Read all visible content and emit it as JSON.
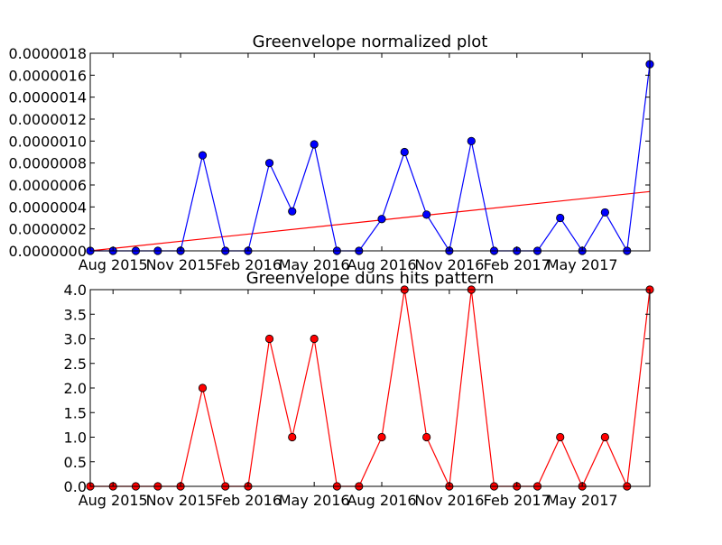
{
  "chart_data": [
    {
      "type": "line",
      "title": "Greenvelope normalized plot",
      "xlabel": "",
      "ylabel": "",
      "x": [
        "2015-07-01",
        "2015-08-01",
        "2015-09-01",
        "2015-10-01",
        "2015-11-01",
        "2015-12-01",
        "2016-01-01",
        "2016-02-01",
        "2016-03-01",
        "2016-04-01",
        "2016-05-01",
        "2016-06-01",
        "2016-07-01",
        "2016-08-01",
        "2016-09-01",
        "2016-10-01",
        "2016-11-01",
        "2016-12-01",
        "2017-01-01",
        "2017-02-01",
        "2017-03-01",
        "2017-04-01",
        "2017-05-01",
        "2017-06-01",
        "2017-07-01",
        "2017-08-01"
      ],
      "xlim": [
        "2015-07-01",
        "2017-08-01"
      ],
      "x_ticks": [
        {
          "date": "2015-08-01",
          "label": "Aug 2015"
        },
        {
          "date": "2015-11-01",
          "label": "Nov 2015"
        },
        {
          "date": "2016-02-01",
          "label": "Feb 2016"
        },
        {
          "date": "2016-05-01",
          "label": "May 2016"
        },
        {
          "date": "2016-08-01",
          "label": "Aug 2016"
        },
        {
          "date": "2016-11-01",
          "label": "Nov 2016"
        },
        {
          "date": "2017-02-01",
          "label": "Feb 2017"
        },
        {
          "date": "2017-05-01",
          "label": "May 2017"
        }
      ],
      "ylim": [
        0,
        1.8e-06
      ],
      "y_ticks": [
        {
          "value": 0,
          "label": "0.0000000"
        },
        {
          "value": 2e-07,
          "label": "0.0000002"
        },
        {
          "value": 4e-07,
          "label": "0.0000004"
        },
        {
          "value": 6e-07,
          "label": "0.0000006"
        },
        {
          "value": 8e-07,
          "label": "0.0000008"
        },
        {
          "value": 1e-06,
          "label": "0.0000010"
        },
        {
          "value": 1.2e-06,
          "label": "0.0000012"
        },
        {
          "value": 1.4e-06,
          "label": "0.0000014"
        },
        {
          "value": 1.6e-06,
          "label": "0.0000016"
        },
        {
          "value": 1.8e-06,
          "label": "0.0000018"
        }
      ],
      "grid": false,
      "series": [
        {
          "color": "#0000ff",
          "marker": "circle",
          "values": [
            0,
            0,
            0,
            0,
            0,
            8.7e-07,
            0,
            0,
            8e-07,
            3.6e-07,
            9.7e-07,
            0,
            0,
            2.9e-07,
            9e-07,
            3.3e-07,
            0,
            1e-06,
            0,
            0,
            0,
            3e-07,
            0,
            3.5e-07,
            0,
            1.7e-06
          ]
        }
      ],
      "trendline": {
        "color": "#ff0000",
        "start": [
          "2015-07-01",
          0
        ],
        "end": [
          "2017-08-01",
          5.4e-07
        ]
      }
    },
    {
      "type": "line",
      "title": "Greenvelope duns hits pattern",
      "xlabel": "",
      "ylabel": "",
      "x": [
        "2015-07-01",
        "2015-08-01",
        "2015-09-01",
        "2015-10-01",
        "2015-11-01",
        "2015-12-01",
        "2016-01-01",
        "2016-02-01",
        "2016-03-01",
        "2016-04-01",
        "2016-05-01",
        "2016-06-01",
        "2016-07-01",
        "2016-08-01",
        "2016-09-01",
        "2016-10-01",
        "2016-11-01",
        "2016-12-01",
        "2017-01-01",
        "2017-02-01",
        "2017-03-01",
        "2017-04-01",
        "2017-05-01",
        "2017-06-01",
        "2017-07-01",
        "2017-08-01"
      ],
      "xlim": [
        "2015-07-01",
        "2017-08-01"
      ],
      "x_ticks": [
        {
          "date": "2015-08-01",
          "label": "Aug 2015"
        },
        {
          "date": "2015-11-01",
          "label": "Nov 2015"
        },
        {
          "date": "2016-02-01",
          "label": "Feb 2016"
        },
        {
          "date": "2016-05-01",
          "label": "May 2016"
        },
        {
          "date": "2016-08-01",
          "label": "Aug 2016"
        },
        {
          "date": "2016-11-01",
          "label": "Nov 2016"
        },
        {
          "date": "2017-02-01",
          "label": "Feb 2017"
        },
        {
          "date": "2017-05-01",
          "label": "May 2017"
        }
      ],
      "ylim": [
        0,
        4
      ],
      "y_ticks": [
        {
          "value": 0,
          "label": "0.0"
        },
        {
          "value": 0.5,
          "label": "0.5"
        },
        {
          "value": 1,
          "label": "1.0"
        },
        {
          "value": 1.5,
          "label": "1.5"
        },
        {
          "value": 2,
          "label": "2.0"
        },
        {
          "value": 2.5,
          "label": "2.5"
        },
        {
          "value": 3,
          "label": "3.0"
        },
        {
          "value": 3.5,
          "label": "3.5"
        },
        {
          "value": 4,
          "label": "4.0"
        }
      ],
      "grid": false,
      "series": [
        {
          "color": "#ff0000",
          "marker": "circle",
          "values": [
            0,
            0,
            0,
            0,
            0,
            2,
            0,
            0,
            3,
            1,
            3,
            0,
            0,
            1,
            4,
            1,
            0,
            4,
            0,
            0,
            0,
            1,
            0,
            1,
            0,
            4
          ]
        }
      ]
    }
  ]
}
